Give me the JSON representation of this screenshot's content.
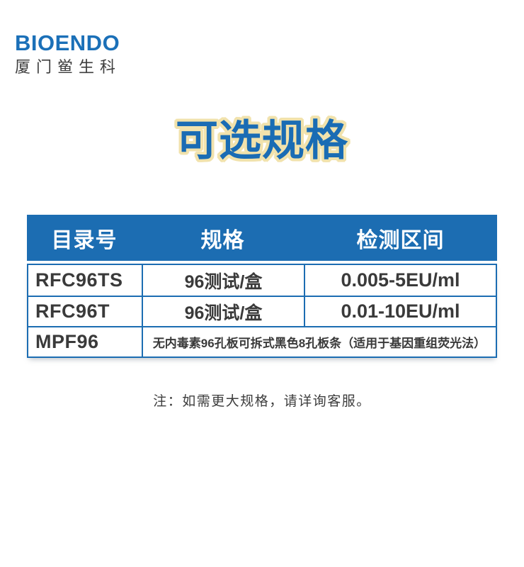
{
  "logo": {
    "brand": "BIOENDO",
    "subtitle": "厦门鲎生科"
  },
  "title": "可选规格",
  "table": {
    "headers": [
      "目录号",
      "规格",
      "检测区间"
    ],
    "rows": [
      {
        "catalog": "RFC96TS",
        "spec": "96测试/盒",
        "range": "0.005-5EU/ml"
      },
      {
        "catalog": "RFC96T",
        "spec": "96测试/盒",
        "range": "0.01-10EU/ml"
      },
      {
        "catalog": "MPF96",
        "description": "无内毒素96孔板可拆式黑色8孔板条（适用于基因重组荧光法）"
      }
    ]
  },
  "note": "注：如需更大规格，请详询客服。",
  "colors": {
    "brand_blue": "#1B70B8",
    "table_blue": "#1C6DB2",
    "title_blue": "#1A6CB4",
    "title_outline": "#F1E2AC",
    "text_dark": "#3A3A3A"
  }
}
